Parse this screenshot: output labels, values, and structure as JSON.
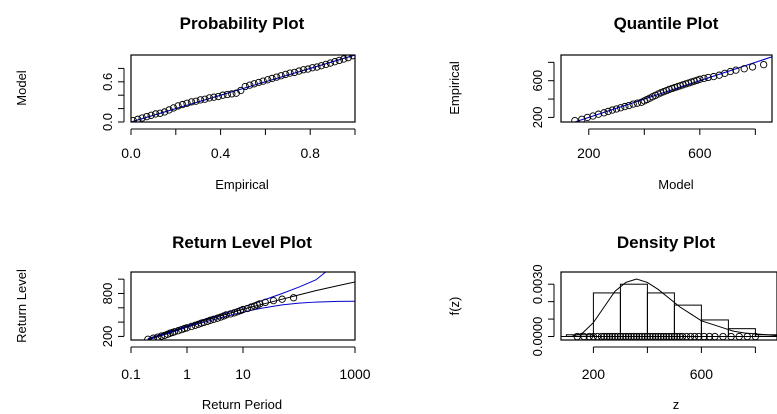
{
  "chart_data": [
    {
      "type": "scatter",
      "title": "Probability Plot",
      "xlabel": "Empirical",
      "ylabel": "Model",
      "xlim": [
        0,
        1
      ],
      "ylim": [
        0,
        1
      ],
      "xticks": [
        0.0,
        0.2,
        0.4,
        0.6,
        0.8,
        1.0
      ],
      "xtick_labels": [
        "0.0",
        "",
        "0.4",
        "",
        "0.8",
        ""
      ],
      "yticks": [
        0.0,
        0.2,
        0.4,
        0.6,
        0.8
      ],
      "ytick_labels": [
        "0.0",
        "",
        "",
        "0.6",
        ""
      ],
      "reference_line": {
        "from": [
          0,
          0
        ],
        "to": [
          1,
          1
        ],
        "color": "#0000cc"
      },
      "series": [
        {
          "x": [
            0.01,
            0.03,
            0.05,
            0.07,
            0.09,
            0.11,
            0.13,
            0.15,
            0.17,
            0.19,
            0.21,
            0.23,
            0.25,
            0.27,
            0.29,
            0.31,
            0.33,
            0.35,
            0.37,
            0.39,
            0.41,
            0.43,
            0.45,
            0.47,
            0.49,
            0.51,
            0.53,
            0.55,
            0.57,
            0.59,
            0.61,
            0.63,
            0.65,
            0.67,
            0.69,
            0.71,
            0.73,
            0.75,
            0.77,
            0.79,
            0.81,
            0.83,
            0.85,
            0.87,
            0.89,
            0.91,
            0.93,
            0.95,
            0.97,
            0.99
          ],
          "y": [
            0.02,
            0.04,
            0.06,
            0.08,
            0.1,
            0.12,
            0.13,
            0.15,
            0.18,
            0.21,
            0.24,
            0.26,
            0.28,
            0.3,
            0.31,
            0.33,
            0.34,
            0.36,
            0.37,
            0.38,
            0.4,
            0.41,
            0.42,
            0.43,
            0.47,
            0.53,
            0.55,
            0.57,
            0.59,
            0.61,
            0.63,
            0.65,
            0.67,
            0.69,
            0.71,
            0.73,
            0.74,
            0.76,
            0.78,
            0.79,
            0.81,
            0.82,
            0.84,
            0.86,
            0.88,
            0.9,
            0.92,
            0.94,
            0.96,
            0.99
          ]
        }
      ]
    },
    {
      "type": "scatter",
      "title": "Quantile Plot",
      "xlabel": "Model",
      "ylabel": "Empirical",
      "xlim": [
        100,
        860
      ],
      "ylim": [
        150,
        880
      ],
      "xticks": [
        200,
        400,
        600,
        800
      ],
      "xtick_labels": [
        "200",
        "",
        "600",
        ""
      ],
      "yticks": [
        200,
        400,
        600,
        800
      ],
      "ytick_labels": [
        "200",
        "",
        "600",
        ""
      ],
      "reference_line": {
        "from": [
          100,
          100
        ],
        "to": [
          900,
          900
        ],
        "color": "#0000cc"
      },
      "series": [
        {
          "x": [
            150,
            175,
            195,
            215,
            235,
            255,
            270,
            285,
            300,
            315,
            330,
            345,
            360,
            375,
            390,
            400,
            410,
            420,
            430,
            440,
            450,
            460,
            470,
            480,
            490,
            500,
            510,
            520,
            530,
            540,
            550,
            560,
            570,
            580,
            590,
            600,
            615,
            630,
            650,
            670,
            690,
            710,
            730,
            760,
            790,
            830
          ],
          "y": [
            165,
            180,
            200,
            215,
            235,
            250,
            265,
            280,
            292,
            305,
            318,
            330,
            345,
            355,
            365,
            380,
            395,
            410,
            425,
            440,
            455,
            468,
            480,
            492,
            505,
            515,
            525,
            535,
            545,
            555,
            565,
            575,
            585,
            595,
            605,
            615,
            625,
            635,
            645,
            660,
            680,
            700,
            715,
            730,
            750,
            775
          ]
        }
      ]
    },
    {
      "type": "line",
      "title": "Return Level Plot",
      "xlabel": "Return Period",
      "ylabel": "Return Level",
      "x_scale": "log",
      "xlim": [
        0.1,
        1000
      ],
      "ylim": [
        150,
        1100
      ],
      "xticks": [
        0.1,
        1,
        10,
        1000
      ],
      "xtick_labels": [
        "0.1",
        "1",
        "10",
        "1000"
      ],
      "yticks": [
        200,
        400,
        600,
        800,
        1000
      ],
      "ytick_labels": [
        "200",
        "",
        "",
        "800",
        ""
      ],
      "series": [
        {
          "name": "",
          "kind": "line",
          "color": "#000000",
          "x": [
            0.2,
            0.5,
            1,
            2,
            5,
            10,
            20,
            50,
            100,
            200,
            500,
            1000
          ],
          "y": [
            160,
            260,
            340,
            420,
            510,
            580,
            640,
            720,
            780,
            840,
            910,
            960
          ]
        },
        {
          "name": "",
          "kind": "line",
          "color": "#0000cc",
          "x": [
            0.2,
            0.5,
            1,
            2,
            5,
            10,
            20,
            50,
            100,
            200,
            300
          ],
          "y": [
            170,
            270,
            350,
            430,
            530,
            610,
            690,
            800,
            890,
            990,
            1100
          ]
        },
        {
          "name": "",
          "kind": "line",
          "color": "#0000cc",
          "x": [
            0.2,
            0.5,
            1,
            2,
            5,
            10,
            20,
            50,
            100,
            200,
            500,
            1000
          ],
          "y": [
            150,
            250,
            330,
            400,
            480,
            540,
            590,
            640,
            665,
            680,
            690,
            692
          ]
        },
        {
          "name": "",
          "kind": "points",
          "x": [
            0.2,
            0.25,
            0.3,
            0.35,
            0.4,
            0.45,
            0.5,
            0.55,
            0.6,
            0.7,
            0.8,
            0.9,
            1.0,
            1.2,
            1.4,
            1.6,
            1.8,
            2.0,
            2.3,
            2.6,
            3.0,
            3.5,
            4.0,
            4.5,
            5,
            6,
            7,
            8,
            9,
            10,
            12,
            14,
            16,
            18,
            20,
            25,
            35,
            50,
            80
          ],
          "y": [
            160,
            175,
            190,
            205,
            215,
            230,
            245,
            255,
            265,
            280,
            295,
            310,
            320,
            340,
            355,
            370,
            385,
            395,
            410,
            425,
            440,
            455,
            470,
            485,
            500,
            515,
            530,
            545,
            560,
            575,
            590,
            610,
            625,
            640,
            655,
            675,
            700,
            720,
            740
          ]
        }
      ]
    },
    {
      "type": "bar",
      "title": "Density Plot",
      "xlabel": "z",
      "ylabel": "f(z)",
      "xlim": [
        80,
        880
      ],
      "ylim": [
        -0.0002,
        0.0037
      ],
      "xticks": [
        200,
        400,
        600,
        800
      ],
      "xtick_labels": [
        "200",
        "",
        "600",
        ""
      ],
      "yticks": [
        0.0,
        0.001,
        0.002,
        0.003
      ],
      "ytick_labels": [
        "0.0000",
        "",
        "",
        "0.0030"
      ],
      "bins": [
        {
          "from": 100,
          "to": 200,
          "density": 0.0001
        },
        {
          "from": 200,
          "to": 300,
          "density": 0.0025
        },
        {
          "from": 300,
          "to": 400,
          "density": 0.003
        },
        {
          "from": 400,
          "to": 500,
          "density": 0.0025
        },
        {
          "from": 500,
          "to": 600,
          "density": 0.0018
        },
        {
          "from": 600,
          "to": 700,
          "density": 0.00095
        },
        {
          "from": 700,
          "to": 800,
          "density": 0.00045
        },
        {
          "from": 800,
          "to": 900,
          "density": 0.0001
        }
      ],
      "curve": {
        "x": [
          120,
          160,
          200,
          240,
          280,
          320,
          360,
          400,
          440,
          480,
          520,
          560,
          600,
          640,
          680,
          720,
          760,
          800,
          840,
          880
        ],
        "y": [
          0.0,
          0.0002,
          0.0008,
          0.0017,
          0.0026,
          0.0031,
          0.0033,
          0.0031,
          0.0027,
          0.0022,
          0.0017,
          0.0013,
          0.0009,
          0.0007,
          0.0005,
          0.0003,
          0.0002,
          0.00015,
          0.0001,
          5e-05
        ]
      },
      "rug": [
        140,
        165,
        185,
        200,
        215,
        230,
        240,
        250,
        260,
        270,
        280,
        290,
        300,
        310,
        320,
        330,
        340,
        350,
        360,
        370,
        380,
        390,
        400,
        410,
        420,
        430,
        440,
        450,
        460,
        470,
        480,
        490,
        500,
        510,
        520,
        530,
        545,
        560,
        575,
        590,
        610,
        630,
        650,
        680,
        710,
        740,
        770,
        800
      ]
    }
  ]
}
